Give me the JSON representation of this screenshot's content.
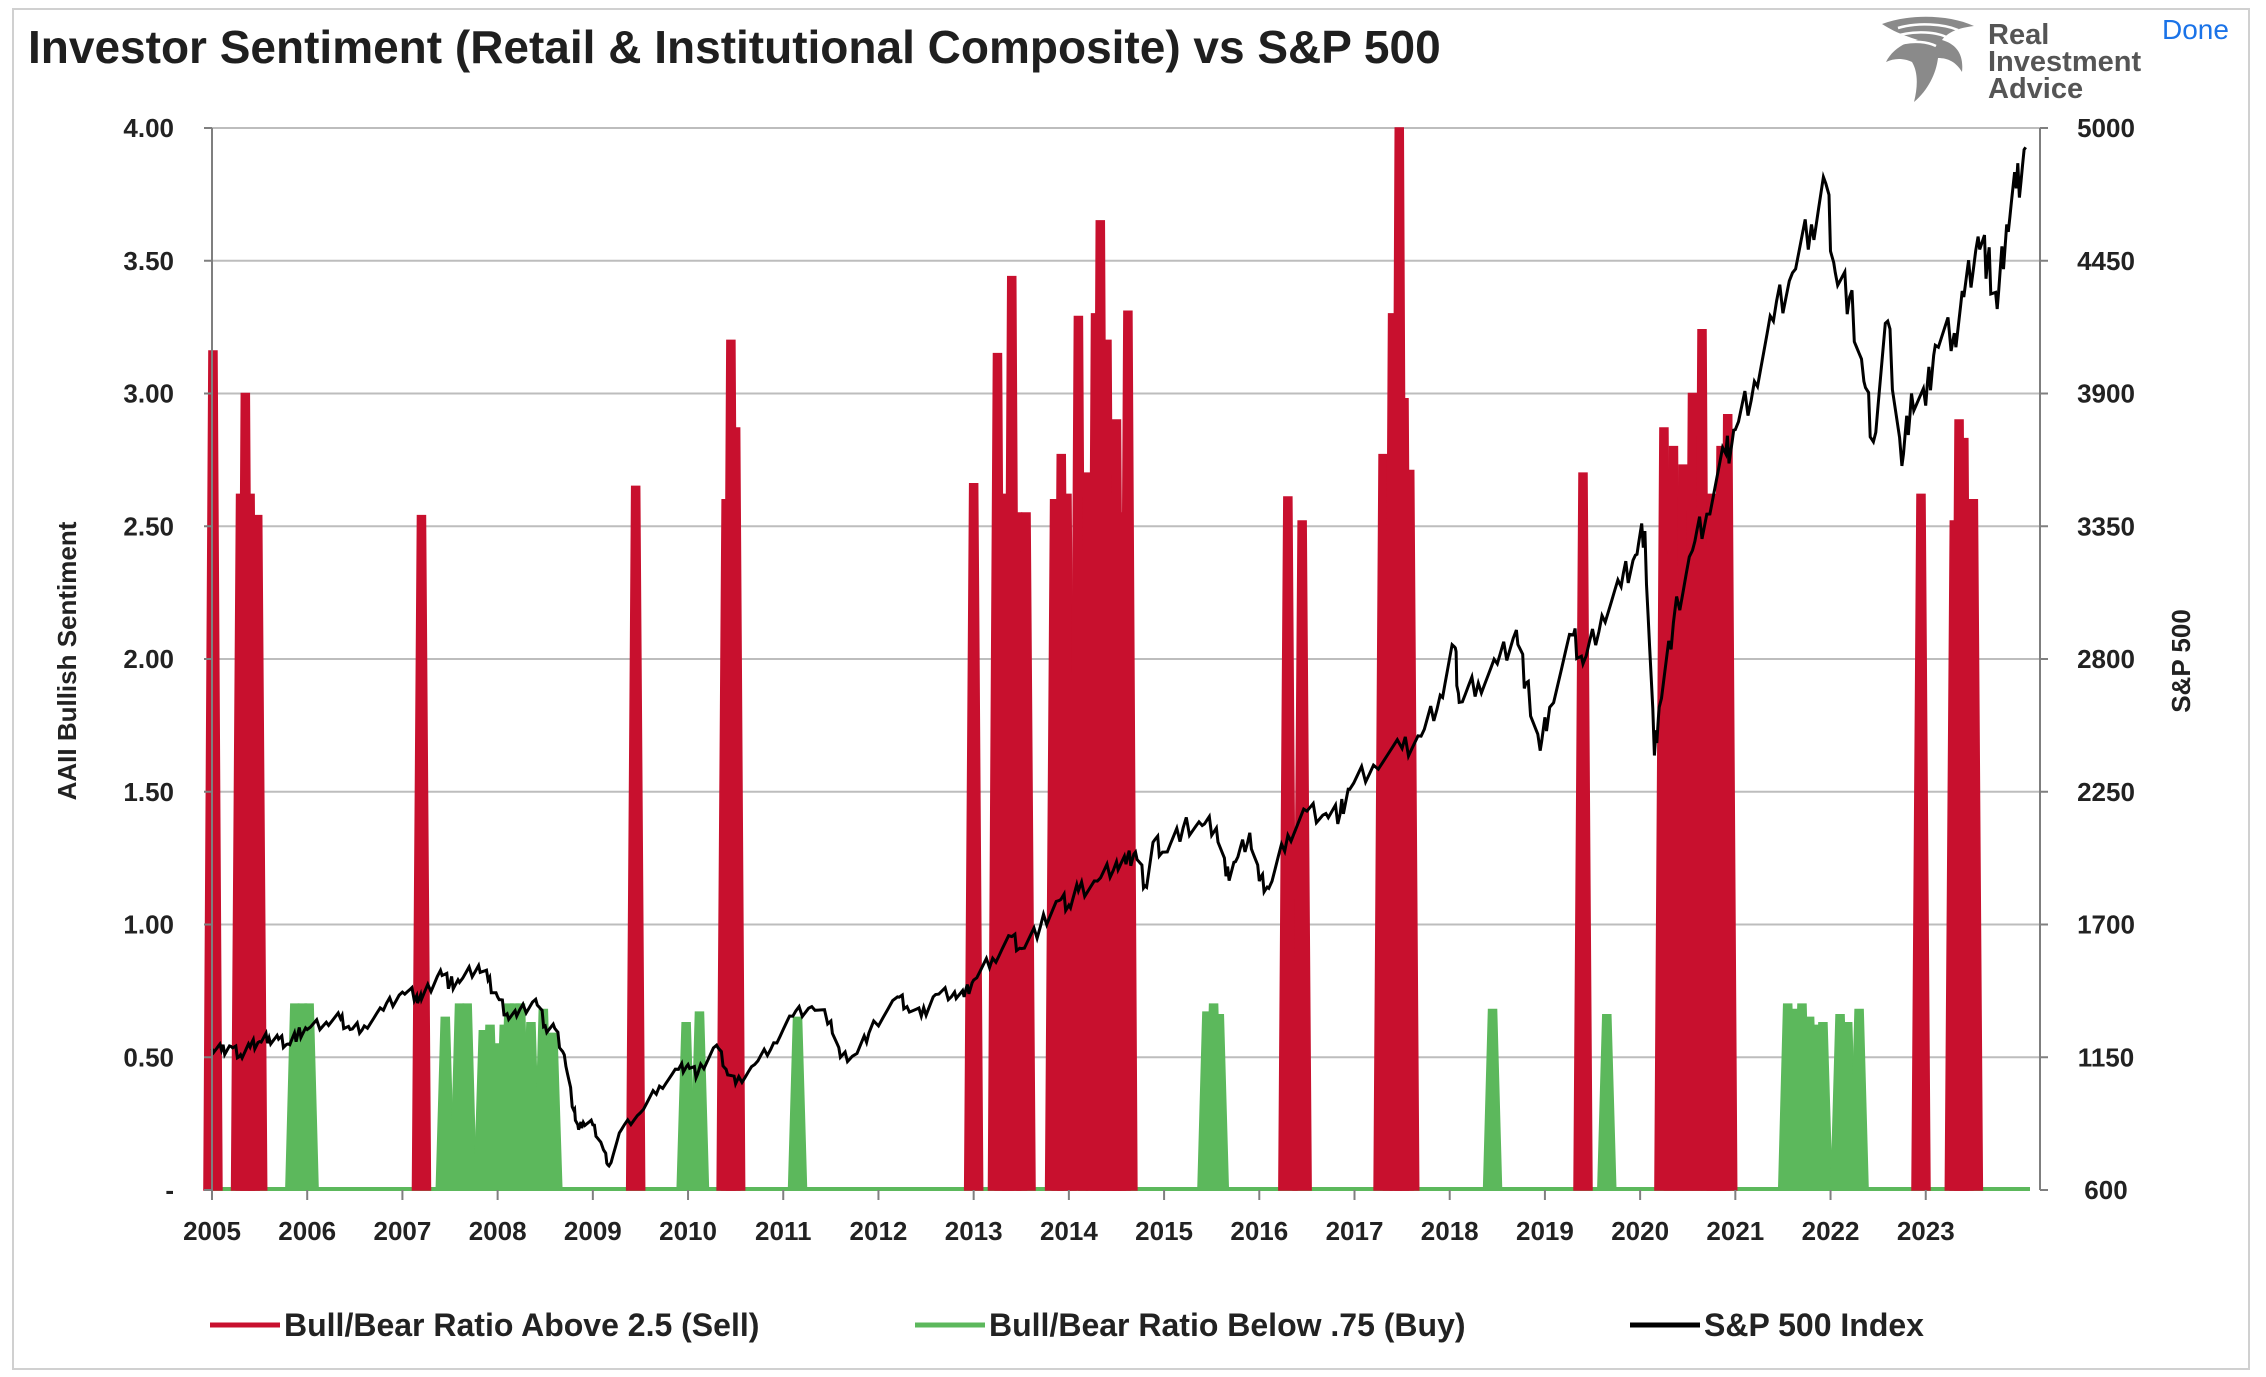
{
  "header": {
    "title": "Investor Sentiment (Retail & Institutional Composite) vs S&P 500",
    "done_label": "Done",
    "logo_lines": [
      "Real",
      "Investment",
      "Advice"
    ]
  },
  "chart_data": {
    "type": "bar+line",
    "title": "Investor Sentiment (Retail & Institutional Composite) vs S&P 500",
    "ylabel_left": "AAII Bullish Sentiment",
    "ylabel_right": "S&P 500",
    "ylim_left": [
      0,
      4
    ],
    "ylim_right": [
      600,
      5000
    ],
    "left_ticks": [
      {
        "v": 0,
        "label": "-"
      },
      {
        "v": 0.5,
        "label": "0.50"
      },
      {
        "v": 1,
        "label": "1.00"
      },
      {
        "v": 1.5,
        "label": "1.50"
      },
      {
        "v": 2,
        "label": "2.00"
      },
      {
        "v": 2.5,
        "label": "2.50"
      },
      {
        "v": 3,
        "label": "3.00"
      },
      {
        "v": 3.5,
        "label": "3.50"
      },
      {
        "v": 4,
        "label": "4.00"
      }
    ],
    "right_ticks": [
      "600",
      "1150",
      "1700",
      "2250",
      "2800",
      "3350",
      "3900",
      "4450",
      "5000"
    ],
    "x_ticks": [
      "2005",
      "2006",
      "2007",
      "2008",
      "2009",
      "2010",
      "2011",
      "2012",
      "2013",
      "2014",
      "2015",
      "2016",
      "2017",
      "2018",
      "2019",
      "2020",
      "2021",
      "2022",
      "2023"
    ],
    "grid": true,
    "legend_position": "bottom",
    "colors": {
      "sell": "#c8102e",
      "buy": "#5cb85c",
      "spx": "#000000",
      "grid": "#bdbdbd",
      "axis": "#7f7f7f"
    },
    "series": [
      {
        "name": "Bull/Bear Ratio Above 2.5 (Sell)",
        "axis": "left",
        "points": [
          [
            2005.01,
            3.16
          ],
          [
            2005.3,
            2.62
          ],
          [
            2005.35,
            3.0
          ],
          [
            2005.4,
            2.62
          ],
          [
            2005.48,
            2.54
          ],
          [
            2007.2,
            2.54
          ],
          [
            2009.45,
            2.65
          ],
          [
            2010.4,
            2.6
          ],
          [
            2010.45,
            3.2
          ],
          [
            2010.5,
            2.87
          ],
          [
            2013.0,
            2.66
          ],
          [
            2013.25,
            3.15
          ],
          [
            2013.32,
            2.62
          ],
          [
            2013.4,
            3.44
          ],
          [
            2013.46,
            2.55
          ],
          [
            2013.55,
            2.55
          ],
          [
            2013.85,
            2.6
          ],
          [
            2013.92,
            2.77
          ],
          [
            2013.98,
            2.62
          ],
          [
            2014.1,
            3.29
          ],
          [
            2014.2,
            2.7
          ],
          [
            2014.28,
            3.3
          ],
          [
            2014.33,
            3.65
          ],
          [
            2014.4,
            3.2
          ],
          [
            2014.45,
            2.62
          ],
          [
            2014.5,
            2.9
          ],
          [
            2014.55,
            2.55
          ],
          [
            2014.62,
            3.31
          ],
          [
            2016.3,
            2.61
          ],
          [
            2016.45,
            2.52
          ],
          [
            2017.3,
            2.77
          ],
          [
            2017.4,
            3.3
          ],
          [
            2017.47,
            4.0
          ],
          [
            2017.52,
            2.98
          ],
          [
            2017.58,
            2.71
          ],
          [
            2019.4,
            2.7
          ],
          [
            2020.25,
            2.87
          ],
          [
            2020.35,
            2.8
          ],
          [
            2020.45,
            2.73
          ],
          [
            2020.55,
            3.0
          ],
          [
            2020.65,
            3.24
          ],
          [
            2020.75,
            2.62
          ],
          [
            2020.8,
            2.52
          ],
          [
            2020.85,
            2.8
          ],
          [
            2020.92,
            2.92
          ],
          [
            2022.95,
            2.62
          ],
          [
            2023.3,
            2.52
          ],
          [
            2023.35,
            2.9
          ],
          [
            2023.4,
            2.83
          ],
          [
            2023.5,
            2.6
          ]
        ]
      },
      {
        "name": "Bull/Bear Ratio Below .75 (Buy)",
        "axis": "left",
        "points": [
          [
            2005.87,
            0.7
          ],
          [
            2005.95,
            0.7
          ],
          [
            2006.02,
            0.7
          ],
          [
            2007.45,
            0.65
          ],
          [
            2007.6,
            0.7
          ],
          [
            2007.68,
            0.7
          ],
          [
            2007.85,
            0.6
          ],
          [
            2007.92,
            0.62
          ],
          [
            2008.0,
            0.55
          ],
          [
            2008.07,
            0.62
          ],
          [
            2008.12,
            0.7
          ],
          [
            2008.18,
            0.7
          ],
          [
            2008.24,
            0.7
          ],
          [
            2008.35,
            0.63
          ],
          [
            2008.48,
            0.68
          ],
          [
            2008.58,
            0.59
          ],
          [
            2009.98,
            0.63
          ],
          [
            2010.12,
            0.67
          ],
          [
            2011.15,
            0.65
          ],
          [
            2015.45,
            0.67
          ],
          [
            2015.52,
            0.7
          ],
          [
            2015.58,
            0.66
          ],
          [
            2018.45,
            0.68
          ],
          [
            2019.65,
            0.66
          ],
          [
            2021.55,
            0.7
          ],
          [
            2021.62,
            0.68
          ],
          [
            2021.7,
            0.7
          ],
          [
            2021.78,
            0.65
          ],
          [
            2021.85,
            0.62
          ],
          [
            2021.92,
            0.63
          ],
          [
            2022.1,
            0.66
          ],
          [
            2022.18,
            0.63
          ],
          [
            2022.3,
            0.68
          ]
        ]
      },
      {
        "name": "S&P 500 Index",
        "axis": "right",
        "points": [
          [
            2005.0,
            1185
          ],
          [
            2005.1,
            1180
          ],
          [
            2005.2,
            1195
          ],
          [
            2005.3,
            1160
          ],
          [
            2005.4,
            1192
          ],
          [
            2005.5,
            1215
          ],
          [
            2005.6,
            1230
          ],
          [
            2005.7,
            1225
          ],
          [
            2005.8,
            1205
          ],
          [
            2005.9,
            1245
          ],
          [
            2006.0,
            1265
          ],
          [
            2006.2,
            1295
          ],
          [
            2006.35,
            1310
          ],
          [
            2006.45,
            1265
          ],
          [
            2006.6,
            1280
          ],
          [
            2006.8,
            1345
          ],
          [
            2007.0,
            1420
          ],
          [
            2007.15,
            1405
          ],
          [
            2007.2,
            1390
          ],
          [
            2007.4,
            1510
          ],
          [
            2007.5,
            1455
          ],
          [
            2007.6,
            1460
          ],
          [
            2007.8,
            1530
          ],
          [
            2007.9,
            1470
          ],
          [
            2008.0,
            1400
          ],
          [
            2008.1,
            1330
          ],
          [
            2008.2,
            1320
          ],
          [
            2008.4,
            1390
          ],
          [
            2008.5,
            1280
          ],
          [
            2008.6,
            1270
          ],
          [
            2008.7,
            1160
          ],
          [
            2008.8,
            930
          ],
          [
            2008.85,
            850
          ],
          [
            2008.9,
            880
          ],
          [
            2009.0,
            870
          ],
          [
            2009.1,
            780
          ],
          [
            2009.17,
            700
          ],
          [
            2009.3,
            850
          ],
          [
            2009.5,
            920
          ],
          [
            2009.7,
            1030
          ],
          [
            2009.9,
            1100
          ],
          [
            2010.0,
            1120
          ],
          [
            2010.1,
            1080
          ],
          [
            2010.3,
            1200
          ],
          [
            2010.4,
            1100
          ],
          [
            2010.5,
            1040
          ],
          [
            2010.7,
            1120
          ],
          [
            2010.9,
            1210
          ],
          [
            2011.1,
            1320
          ],
          [
            2011.3,
            1360
          ],
          [
            2011.5,
            1300
          ],
          [
            2011.6,
            1150
          ],
          [
            2011.75,
            1160
          ],
          [
            2011.9,
            1250
          ],
          [
            2012.2,
            1400
          ],
          [
            2012.3,
            1360
          ],
          [
            2012.45,
            1320
          ],
          [
            2012.6,
            1410
          ],
          [
            2012.8,
            1420
          ],
          [
            2012.9,
            1400
          ],
          [
            2013.0,
            1470
          ],
          [
            2013.2,
            1560
          ],
          [
            2013.4,
            1650
          ],
          [
            2013.5,
            1600
          ],
          [
            2013.7,
            1690
          ],
          [
            2013.9,
            1800
          ],
          [
            2014.0,
            1780
          ],
          [
            2014.1,
            1840
          ],
          [
            2014.3,
            1880
          ],
          [
            2014.5,
            1960
          ],
          [
            2014.6,
            1950
          ],
          [
            2014.7,
            2000
          ],
          [
            2014.8,
            1860
          ],
          [
            2014.9,
            2050
          ],
          [
            2015.0,
            2000
          ],
          [
            2015.2,
            2100
          ],
          [
            2015.4,
            2110
          ],
          [
            2015.55,
            2100
          ],
          [
            2015.65,
            1900
          ],
          [
            2015.75,
            1960
          ],
          [
            2015.9,
            2080
          ],
          [
            2016.0,
            1880
          ],
          [
            2016.1,
            1850
          ],
          [
            2016.3,
            2070
          ],
          [
            2016.5,
            2170
          ],
          [
            2016.7,
            2160
          ],
          [
            2016.85,
            2160
          ],
          [
            2016.95,
            2260
          ],
          [
            2017.2,
            2360
          ],
          [
            2017.5,
            2430
          ],
          [
            2017.7,
            2480
          ],
          [
            2017.9,
            2650
          ],
          [
            2018.05,
            2850
          ],
          [
            2018.1,
            2620
          ],
          [
            2018.3,
            2700
          ],
          [
            2018.5,
            2780
          ],
          [
            2018.7,
            2920
          ],
          [
            2018.8,
            2700
          ],
          [
            2018.95,
            2420
          ],
          [
            2019.05,
            2600
          ],
          [
            2019.3,
            2900
          ],
          [
            2019.4,
            2780
          ],
          [
            2019.6,
            2980
          ],
          [
            2019.8,
            3100
          ],
          [
            2019.95,
            3230
          ],
          [
            2020.05,
            3330
          ],
          [
            2020.15,
            2400
          ],
          [
            2020.2,
            2600
          ],
          [
            2020.35,
            2950
          ],
          [
            2020.55,
            3250
          ],
          [
            2020.7,
            3400
          ],
          [
            2020.9,
            3650
          ],
          [
            2021.0,
            3750
          ],
          [
            2021.2,
            3950
          ],
          [
            2021.4,
            4200
          ],
          [
            2021.6,
            4400
          ],
          [
            2021.8,
            4600
          ],
          [
            2021.95,
            4770
          ],
          [
            2022.05,
            4400
          ],
          [
            2022.2,
            4300
          ],
          [
            2022.35,
            3950
          ],
          [
            2022.45,
            3700
          ],
          [
            2022.6,
            4200
          ],
          [
            2022.75,
            3600
          ],
          [
            2022.85,
            3900
          ],
          [
            2023.0,
            3850
          ],
          [
            2023.1,
            4100
          ],
          [
            2023.3,
            4150
          ],
          [
            2023.4,
            4300
          ],
          [
            2023.55,
            4550
          ],
          [
            2023.65,
            4450
          ],
          [
            2023.75,
            4250
          ],
          [
            2023.85,
            4600
          ],
          [
            2023.95,
            4750
          ],
          [
            2024.05,
            4920
          ]
        ]
      }
    ]
  }
}
